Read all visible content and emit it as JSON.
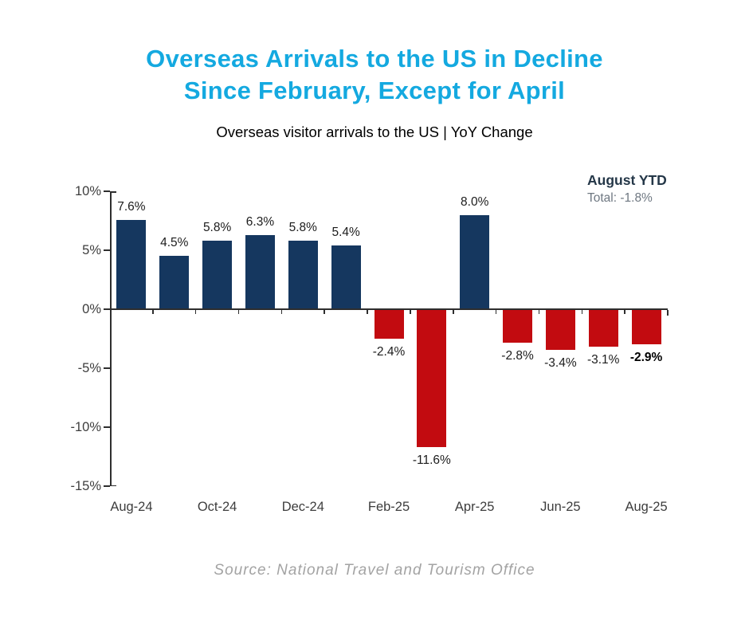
{
  "header": {
    "title_line1": "Overseas Arrivals to the US in Decline",
    "title_line2": "Since February, Except for April",
    "subtitle": "Overseas visitor arrivals to the US | YoY Change"
  },
  "annotation": {
    "heading": "August YTD",
    "subtext": "Total: -1.8%"
  },
  "footer": {
    "source": "Source: National Travel and Tourism Office"
  },
  "colors": {
    "title": "#14a9e0",
    "bar_positive": "#15375f",
    "bar_negative": "#c20b10",
    "axis": "#2e2e2e",
    "axis_label": "#3d3d3d",
    "value_label": "#1c1c1c",
    "annotation_heading": "#243748",
    "annotation_subtext": "#6e7781",
    "source": "#a3a3a3"
  },
  "chart_data": {
    "type": "bar",
    "title": "Overseas visitor arrivals to the US | YoY Change",
    "unit": "%",
    "values": [
      7.6,
      4.5,
      5.8,
      6.3,
      5.8,
      5.4,
      -2.4,
      -11.6,
      8.0,
      -2.8,
      -3.4,
      -3.1,
      -2.9
    ],
    "data_labels": [
      "7.6%",
      "4.5%",
      "5.8%",
      "6.3%",
      "5.8%",
      "5.4%",
      "-2.4%",
      "-11.6%",
      "8.0%",
      "-2.8%",
      "-3.4%",
      "-3.1%",
      "-2.9%"
    ],
    "bold_label_index": 12,
    "x_tick_labels": [
      "Aug-24",
      "Oct-24",
      "Dec-24",
      "Feb-25",
      "Apr-25",
      "Jun-25",
      "Aug-25"
    ],
    "x_tick_positions": [
      0,
      2,
      4,
      6,
      8,
      10,
      12
    ],
    "y_ticks": [
      10,
      5,
      0,
      -5,
      -10,
      -15
    ],
    "y_tick_labels": [
      "10%",
      "5%",
      "0%",
      "-5%",
      "-10%",
      "-15%"
    ],
    "ylim": [
      -15,
      10
    ],
    "grid": false,
    "legend": false,
    "positive_color": "#15375f",
    "negative_color": "#c20b10"
  }
}
